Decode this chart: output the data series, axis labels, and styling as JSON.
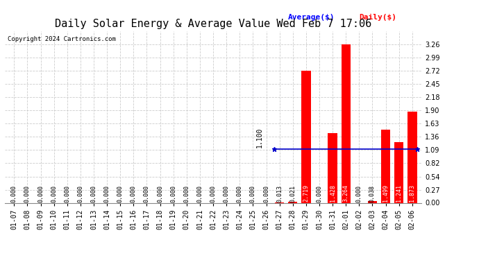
{
  "title": "Daily Solar Energy & Average Value Wed Feb 7 17:06",
  "copyright": "Copyright 2024 Cartronics.com",
  "categories": [
    "01-07",
    "01-08",
    "01-09",
    "01-10",
    "01-11",
    "01-12",
    "01-13",
    "01-14",
    "01-15",
    "01-16",
    "01-17",
    "01-18",
    "01-19",
    "01-20",
    "01-21",
    "01-22",
    "01-23",
    "01-24",
    "01-25",
    "01-26",
    "01-27",
    "01-28",
    "01-29",
    "01-30",
    "01-31",
    "02-01",
    "02-02",
    "02-03",
    "02-04",
    "02-05",
    "02-06"
  ],
  "values": [
    0.0,
    0.0,
    0.0,
    0.0,
    0.0,
    0.0,
    0.0,
    0.0,
    0.0,
    0.0,
    0.0,
    0.0,
    0.0,
    0.0,
    0.0,
    0.0,
    0.0,
    0.0,
    0.0,
    0.0,
    0.013,
    0.021,
    2.719,
    0.0,
    1.428,
    3.264,
    0.0,
    0.038,
    1.499,
    1.241,
    1.873
  ],
  "average_value": 1.1,
  "average_label": "1.100",
  "bar_color": "#ff0000",
  "average_line_color": "#0000cc",
  "background_color": "#ffffff",
  "grid_color": "#cccccc",
  "ylim": [
    0.0,
    3.53
  ],
  "yticks": [
    0.0,
    0.27,
    0.54,
    0.82,
    1.09,
    1.36,
    1.63,
    1.9,
    2.18,
    2.45,
    2.72,
    2.99,
    3.26
  ],
  "title_fontsize": 11,
  "tick_fontsize": 7,
  "legend_avg_color": "#0000ff",
  "legend_daily_color": "#ff0000",
  "avg_legend_label": "Average($)",
  "daily_legend_label": "Daily($)"
}
